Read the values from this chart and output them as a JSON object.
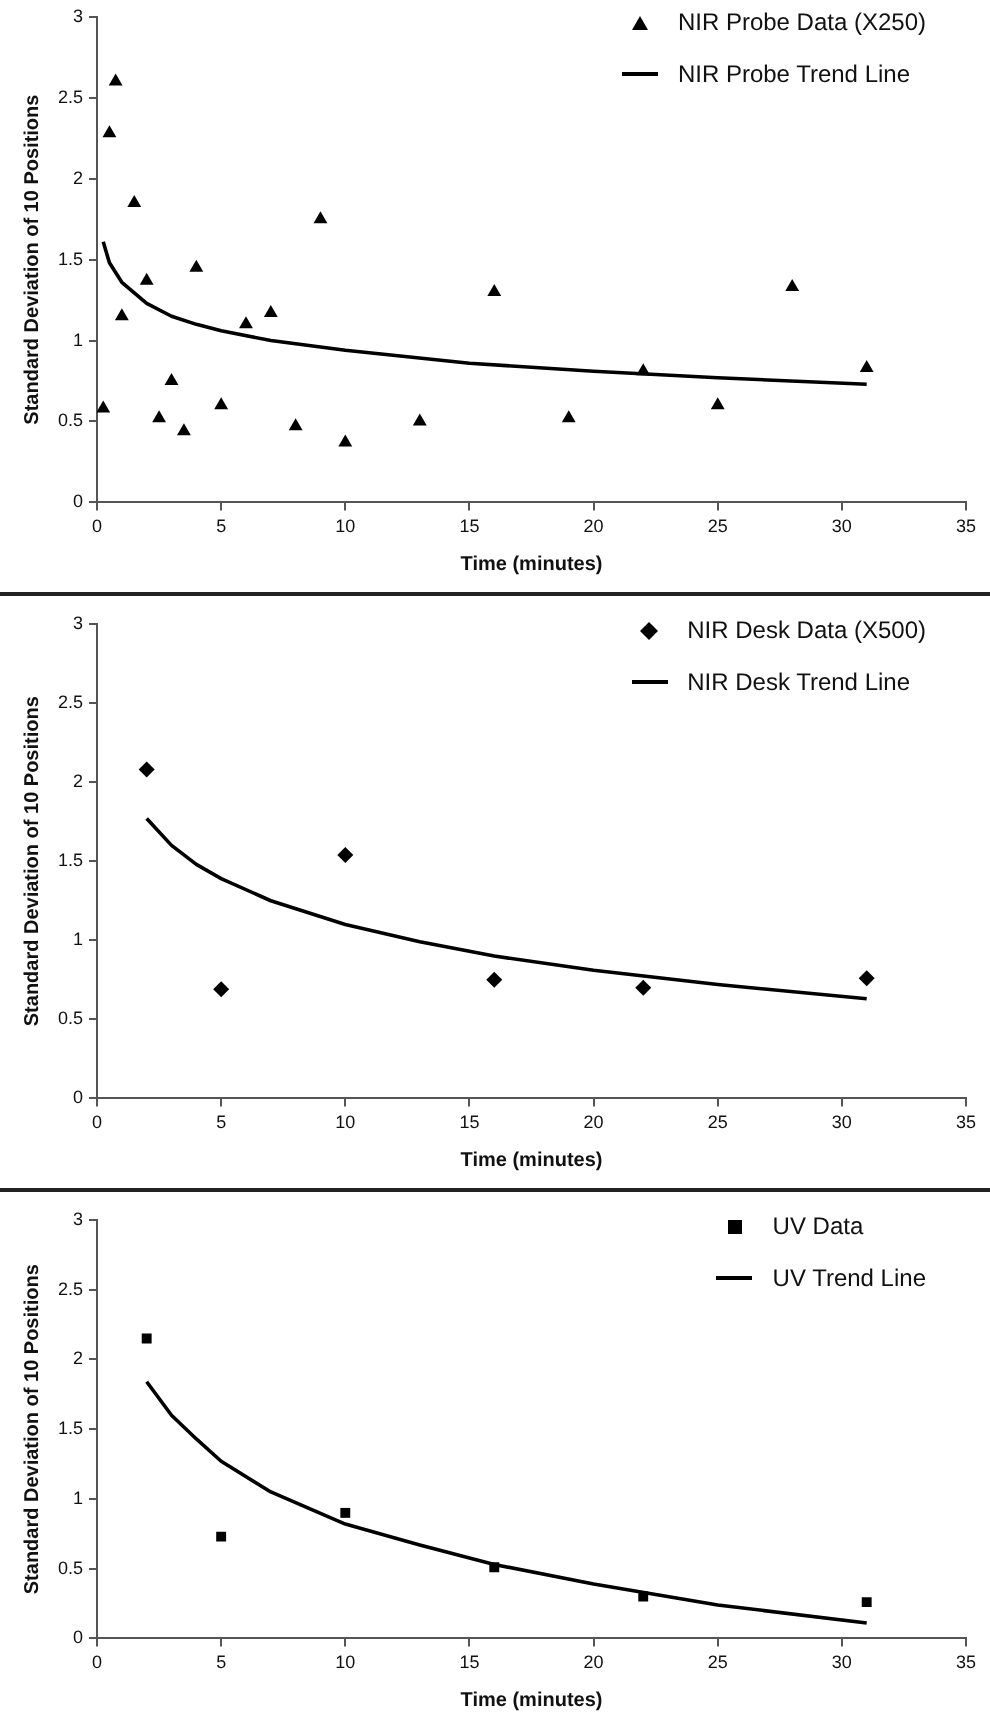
{
  "chart_data": [
    {
      "type": "scatter",
      "xlabel": "Time (minutes)",
      "ylabel": "Standard Deviation of 10 Positions",
      "xlim": [
        0,
        35
      ],
      "xticks": [
        0,
        5,
        10,
        15,
        20,
        25,
        30,
        35
      ],
      "ylim": [
        0,
        3
      ],
      "yticks": [
        0,
        0.5,
        1,
        1.5,
        2,
        2.5,
        3
      ],
      "grid": false,
      "legend": "top right",
      "series": [
        {
          "name": "NIR Probe Data (X250)",
          "marker": "triangle",
          "color": "#000000",
          "x": [
            0.25,
            0.5,
            0.75,
            1,
            1.5,
            2,
            2.5,
            3,
            3.5,
            4,
            5,
            6,
            7,
            8,
            9,
            10,
            13,
            16,
            19,
            22,
            25,
            28,
            31
          ],
          "values": [
            0.58,
            2.28,
            2.6,
            1.15,
            1.85,
            1.37,
            0.52,
            0.75,
            0.44,
            1.45,
            0.6,
            1.1,
            1.17,
            0.47,
            1.75,
            0.37,
            0.5,
            1.3,
            0.52,
            0.81,
            0.6,
            1.33,
            0.83
          ]
        },
        {
          "name": "NIR Probe Trend Line",
          "type": "line",
          "marker": "none",
          "color": "#000000",
          "x": [
            0.25,
            0.5,
            1,
            2,
            3,
            4,
            5,
            7,
            10,
            15,
            20,
            25,
            31
          ],
          "values": [
            1.61,
            1.48,
            1.36,
            1.23,
            1.15,
            1.1,
            1.06,
            1.0,
            0.94,
            0.86,
            0.81,
            0.77,
            0.73
          ]
        }
      ]
    },
    {
      "type": "scatter",
      "xlabel": "Time (minutes)",
      "ylabel": "Standard Deviation of 10 Positions",
      "xlim": [
        0,
        35
      ],
      "xticks": [
        0,
        5,
        10,
        15,
        20,
        25,
        30,
        35
      ],
      "ylim": [
        0,
        3
      ],
      "yticks": [
        0,
        0.5,
        1,
        1.5,
        2,
        2.5,
        3
      ],
      "grid": false,
      "legend": "top right",
      "series": [
        {
          "name": "NIR Desk Data (X500)",
          "marker": "diamond",
          "color": "#000000",
          "x": [
            2,
            5,
            10,
            16,
            22,
            31
          ],
          "values": [
            2.08,
            0.69,
            1.54,
            0.75,
            0.7,
            0.76
          ]
        },
        {
          "name": "NIR Desk Trend Line",
          "type": "line",
          "marker": "none",
          "color": "#000000",
          "x": [
            2,
            3,
            4,
            5,
            7,
            10,
            13,
            16,
            20,
            25,
            31
          ],
          "values": [
            1.77,
            1.6,
            1.48,
            1.39,
            1.25,
            1.1,
            0.99,
            0.9,
            0.81,
            0.72,
            0.63
          ]
        }
      ]
    },
    {
      "type": "scatter",
      "xlabel": "Time (minutes)",
      "ylabel": "Standard Deviation of 10 Positions",
      "xlim": [
        0,
        35
      ],
      "xticks": [
        0,
        5,
        10,
        15,
        20,
        25,
        30,
        35
      ],
      "ylim": [
        0,
        3
      ],
      "yticks": [
        0,
        0.5,
        1,
        1.5,
        2,
        2.5,
        3
      ],
      "grid": false,
      "legend": "top right",
      "series": [
        {
          "name": "UV Data",
          "marker": "square",
          "color": "#000000",
          "x": [
            2,
            5,
            10,
            16,
            22,
            31
          ],
          "values": [
            2.15,
            0.73,
            0.9,
            0.51,
            0.3,
            0.26
          ]
        },
        {
          "name": "UV Trend Line",
          "type": "line",
          "marker": "none",
          "color": "#000000",
          "x": [
            2,
            3,
            4,
            5,
            7,
            10,
            13,
            16,
            20,
            25,
            31
          ],
          "values": [
            1.84,
            1.6,
            1.43,
            1.27,
            1.05,
            0.82,
            0.67,
            0.53,
            0.39,
            0.24,
            0.11
          ]
        }
      ]
    }
  ]
}
